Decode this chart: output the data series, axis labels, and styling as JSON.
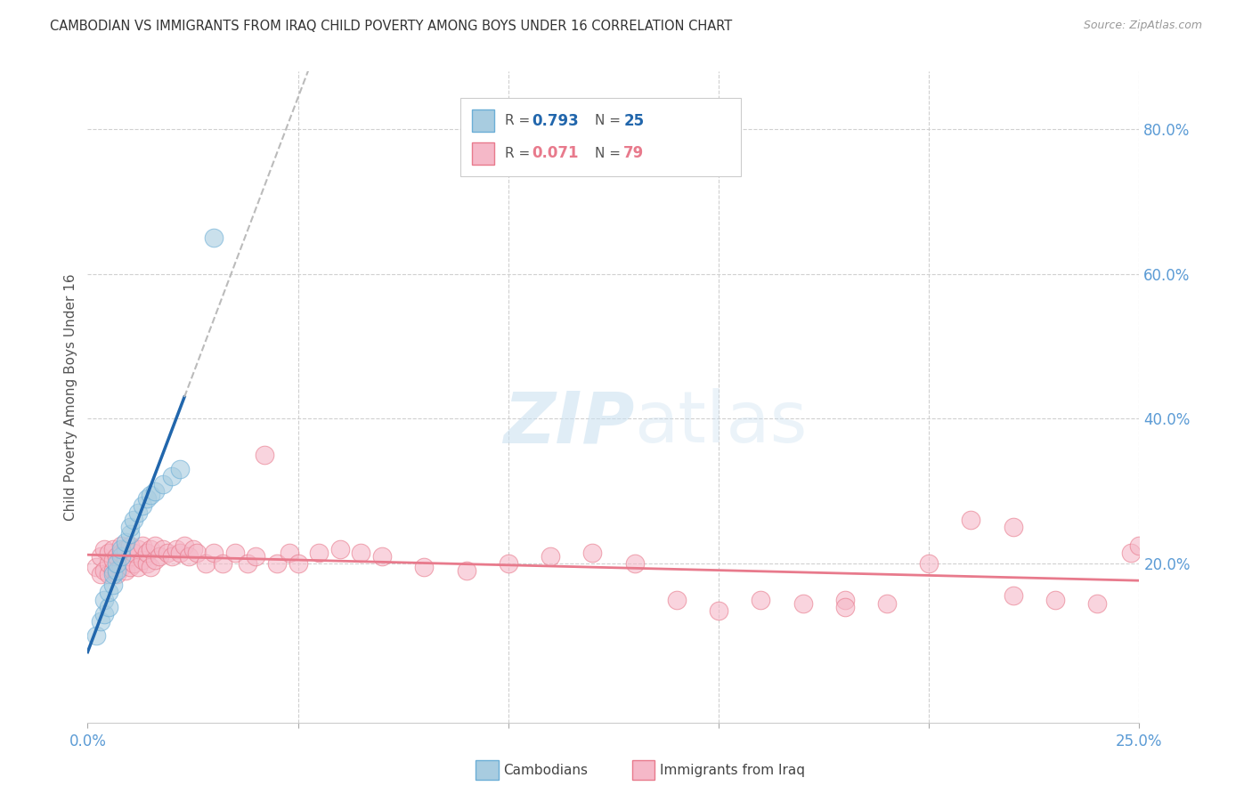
{
  "title": "CAMBODIAN VS IMMIGRANTS FROM IRAQ CHILD POVERTY AMONG BOYS UNDER 16 CORRELATION CHART",
  "source": "Source: ZipAtlas.com",
  "ylabel": "Child Poverty Among Boys Under 16",
  "r_cambodian": 0.793,
  "n_cambodian": 25,
  "r_iraq": 0.071,
  "n_iraq": 79,
  "xlim": [
    0.0,
    0.25
  ],
  "ylim": [
    -0.02,
    0.88
  ],
  "xtick_positions": [
    0.0,
    0.05,
    0.1,
    0.15,
    0.2,
    0.25
  ],
  "xtick_labels": [
    "0.0%",
    "",
    "",
    "",
    "",
    "25.0%"
  ],
  "yticks_right": [
    0.2,
    0.4,
    0.6,
    0.8
  ],
  "ytick_labels_right": [
    "20.0%",
    "40.0%",
    "60.0%",
    "80.0%"
  ],
  "color_cambodian_fill": "#a8cce0",
  "color_cambodian_edge": "#6baed6",
  "color_iraq_fill": "#f5b8c8",
  "color_iraq_edge": "#e87a8c",
  "color_line_cambodian": "#2166ac",
  "color_line_iraq": "#e87a8c",
  "color_grid": "#d0d0d0",
  "background_color": "#ffffff",
  "cambodian_x": [
    0.002,
    0.003,
    0.004,
    0.004,
    0.005,
    0.005,
    0.006,
    0.006,
    0.007,
    0.007,
    0.008,
    0.008,
    0.009,
    0.01,
    0.01,
    0.011,
    0.012,
    0.013,
    0.014,
    0.015,
    0.016,
    0.018,
    0.02,
    0.022,
    0.03
  ],
  "cambodian_y": [
    0.1,
    0.12,
    0.13,
    0.15,
    0.14,
    0.16,
    0.17,
    0.185,
    0.19,
    0.2,
    0.21,
    0.22,
    0.23,
    0.24,
    0.25,
    0.26,
    0.27,
    0.28,
    0.29,
    0.295,
    0.3,
    0.31,
    0.32,
    0.33,
    0.65
  ],
  "iraq_x": [
    0.002,
    0.003,
    0.003,
    0.004,
    0.004,
    0.005,
    0.005,
    0.005,
    0.006,
    0.006,
    0.006,
    0.007,
    0.007,
    0.008,
    0.008,
    0.008,
    0.009,
    0.009,
    0.009,
    0.01,
    0.01,
    0.01,
    0.011,
    0.011,
    0.012,
    0.012,
    0.013,
    0.013,
    0.014,
    0.014,
    0.015,
    0.015,
    0.016,
    0.016,
    0.017,
    0.018,
    0.019,
    0.02,
    0.021,
    0.022,
    0.023,
    0.024,
    0.025,
    0.026,
    0.028,
    0.03,
    0.032,
    0.035,
    0.038,
    0.04,
    0.042,
    0.045,
    0.048,
    0.05,
    0.055,
    0.06,
    0.065,
    0.07,
    0.08,
    0.09,
    0.1,
    0.11,
    0.12,
    0.13,
    0.14,
    0.15,
    0.16,
    0.17,
    0.18,
    0.19,
    0.2,
    0.21,
    0.22,
    0.23,
    0.24,
    0.248,
    0.25,
    0.22,
    0.18
  ],
  "iraq_y": [
    0.195,
    0.185,
    0.21,
    0.19,
    0.22,
    0.185,
    0.2,
    0.215,
    0.19,
    0.205,
    0.22,
    0.185,
    0.21,
    0.195,
    0.215,
    0.225,
    0.19,
    0.205,
    0.22,
    0.195,
    0.21,
    0.225,
    0.2,
    0.215,
    0.195,
    0.22,
    0.205,
    0.225,
    0.2,
    0.215,
    0.195,
    0.22,
    0.205,
    0.225,
    0.21,
    0.22,
    0.215,
    0.21,
    0.22,
    0.215,
    0.225,
    0.21,
    0.22,
    0.215,
    0.2,
    0.215,
    0.2,
    0.215,
    0.2,
    0.21,
    0.35,
    0.2,
    0.215,
    0.2,
    0.215,
    0.22,
    0.215,
    0.21,
    0.195,
    0.19,
    0.2,
    0.21,
    0.215,
    0.2,
    0.15,
    0.135,
    0.15,
    0.145,
    0.15,
    0.145,
    0.2,
    0.26,
    0.25,
    0.15,
    0.145,
    0.215,
    0.225,
    0.155,
    0.14
  ]
}
